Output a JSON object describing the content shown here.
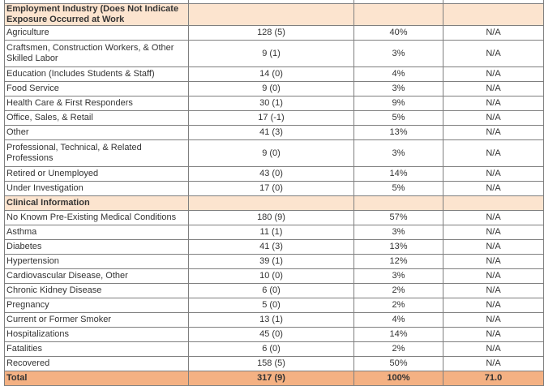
{
  "sections": [
    {
      "title": "Employment Industry (Does Not Indicate Exposure Occurred at Work",
      "rows": [
        {
          "label": "Agriculture",
          "count": "128 (5)",
          "pct": "40%",
          "extra": "N/A"
        },
        {
          "label": "Craftsmen, Construction Workers, & Other Skilled Labor",
          "count": "9 (1)",
          "pct": "3%",
          "extra": "N/A"
        },
        {
          "label": "Education (Includes Students & Staff)",
          "count": "14 (0)",
          "pct": "4%",
          "extra": "N/A"
        },
        {
          "label": "Food Service",
          "count": "9 (0)",
          "pct": "3%",
          "extra": "N/A"
        },
        {
          "label": "Health Care & First Responders",
          "count": "30 (1)",
          "pct": "9%",
          "extra": "N/A"
        },
        {
          "label": "Office, Sales, & Retail",
          "count": "17 (-1)",
          "pct": "5%",
          "extra": "N/A"
        },
        {
          "label": "Other",
          "count": "41 (3)",
          "pct": "13%",
          "extra": "N/A"
        },
        {
          "label": "Professional, Technical, & Related Professions",
          "count": "9 (0)",
          "pct": "3%",
          "extra": "N/A"
        },
        {
          "label": "Retired or Unemployed",
          "count": "43 (0)",
          "pct": "14%",
          "extra": "N/A"
        },
        {
          "label": "Under Investigation",
          "count": "17 (0)",
          "pct": "5%",
          "extra": "N/A"
        }
      ]
    },
    {
      "title": "Clinical Information",
      "rows": [
        {
          "label": "No Known Pre-Existing Medical Conditions",
          "count": "180 (9)",
          "pct": "57%",
          "extra": "N/A"
        },
        {
          "label": "Asthma",
          "count": "11 (1)",
          "pct": "3%",
          "extra": "N/A"
        },
        {
          "label": "Diabetes",
          "count": "41 (3)",
          "pct": "13%",
          "extra": "N/A"
        },
        {
          "label": "Hypertension",
          "count": "39 (1)",
          "pct": "12%",
          "extra": "N/A"
        },
        {
          "label": "Cardiovascular Disease, Other",
          "count": "10 (0)",
          "pct": "3%",
          "extra": "N/A"
        },
        {
          "label": "Chronic Kidney Disease",
          "count": "6 (0)",
          "pct": "2%",
          "extra": "N/A"
        },
        {
          "label": "Pregnancy",
          "count": "5 (0)",
          "pct": "2%",
          "extra": "N/A"
        },
        {
          "label": "Current or Former Smoker",
          "count": "13 (1)",
          "pct": "4%",
          "extra": "N/A"
        },
        {
          "label": "Hospitalizations",
          "count": "45 (0)",
          "pct": "14%",
          "extra": "N/A"
        },
        {
          "label": "Fatalities",
          "count": "6 (0)",
          "pct": "2%",
          "extra": "N/A"
        },
        {
          "label": "Recovered",
          "count": "158 (5)",
          "pct": "50%",
          "extra": "N/A"
        }
      ]
    }
  ],
  "total": {
    "label": "Total",
    "count": "317 (9)",
    "pct": "100%",
    "extra": "71.0"
  },
  "colors": {
    "section_bg": "#fce4cf",
    "total_bg": "#f4b183",
    "border": "#7f7f7f"
  }
}
